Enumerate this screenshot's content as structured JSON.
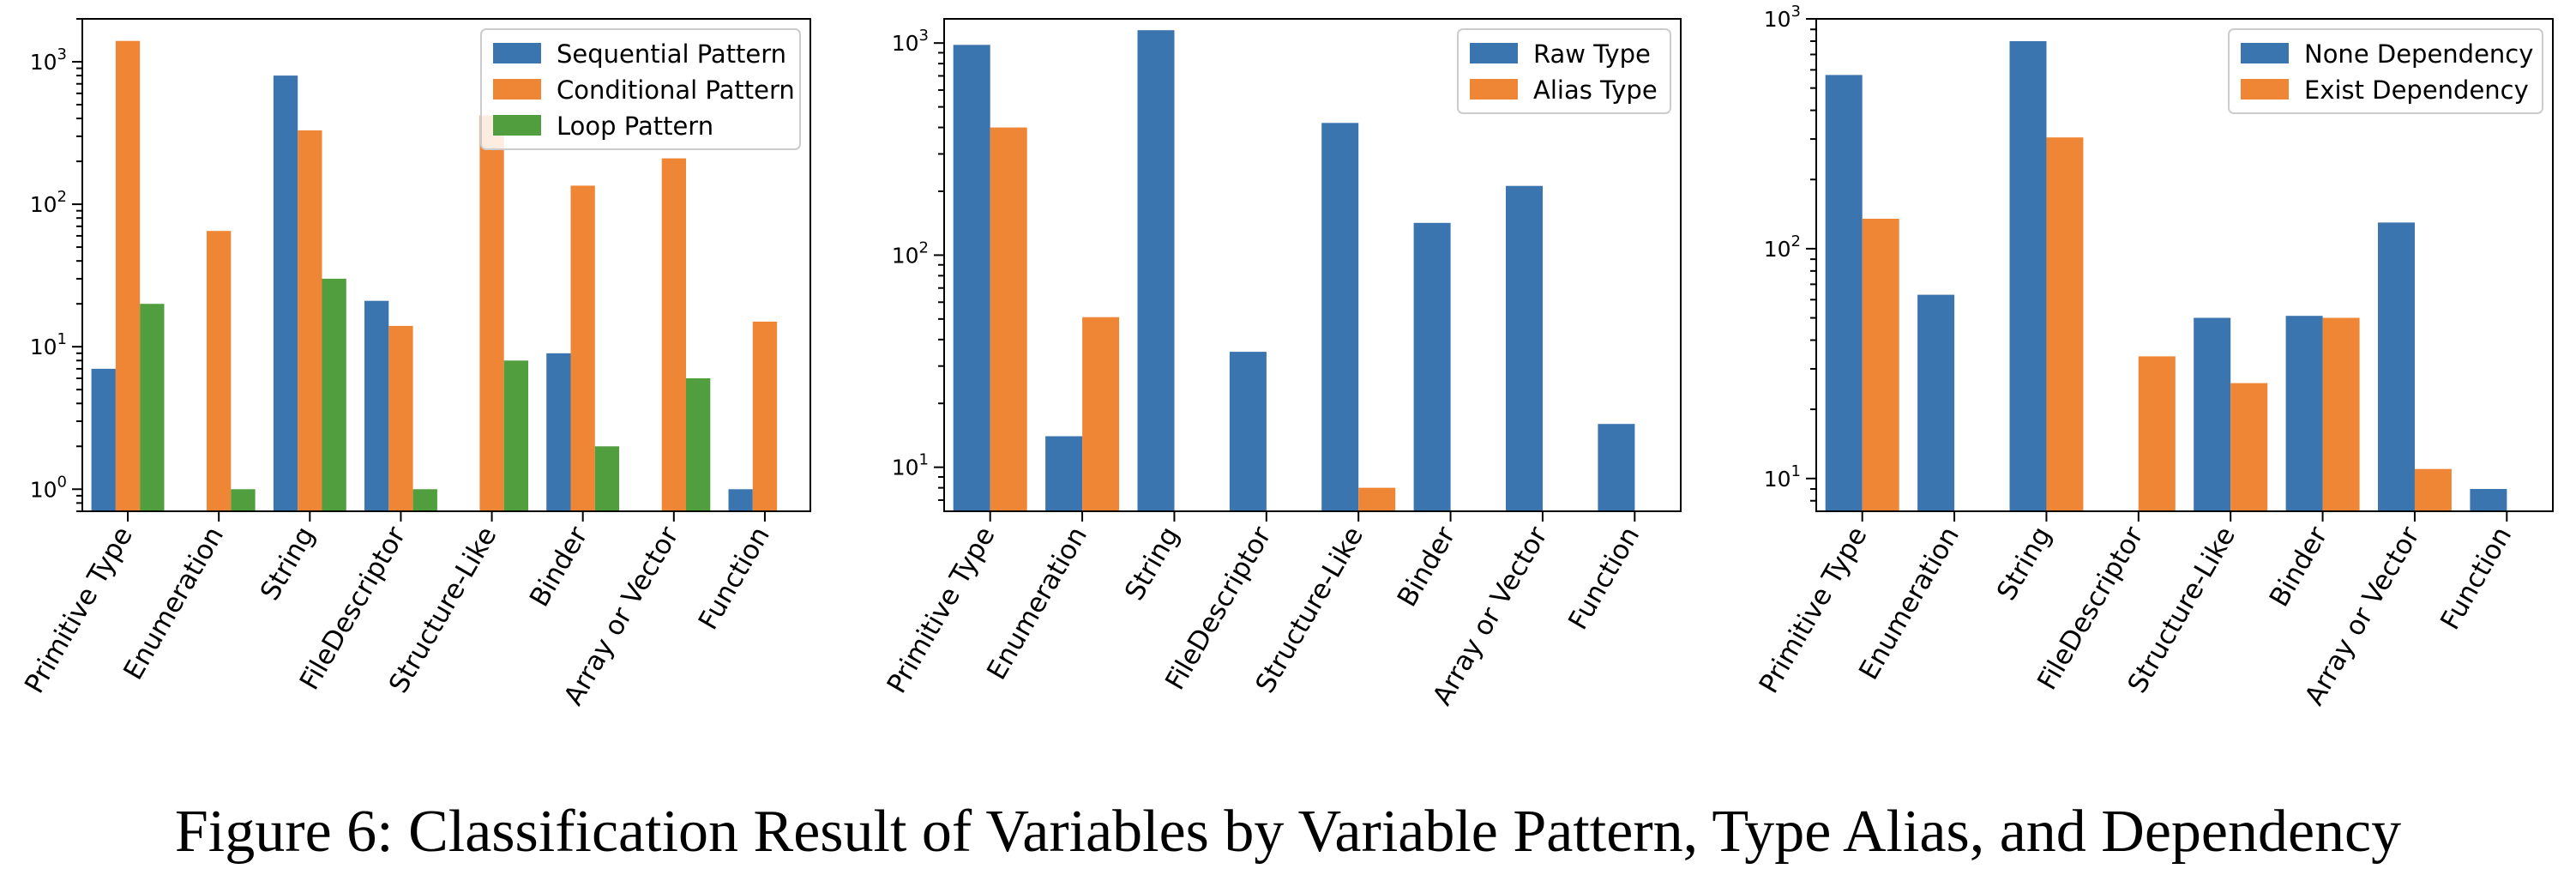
{
  "caption": "Figure 6: Classification Result of Variables by Variable Pattern, Type Alias, and Dependency",
  "colors": {
    "blue": "#3b75af",
    "orange": "#ef8636",
    "green": "#519e3e"
  },
  "chart_data": [
    {
      "type": "bar",
      "yscale": "log",
      "ylim": [
        0.7,
        2000
      ],
      "yticks": [
        {
          "value": 1,
          "base": "10",
          "exp": "0"
        },
        {
          "value": 10,
          "base": "10",
          "exp": "1"
        },
        {
          "value": 100,
          "base": "10",
          "exp": "2"
        },
        {
          "value": 1000,
          "base": "10",
          "exp": "3"
        }
      ],
      "categories": [
        "Primitive Type",
        "Enumeration",
        "String",
        "FileDescriptor",
        "Structure-Like",
        "Binder",
        "Array or Vector",
        "Function"
      ],
      "series": [
        {
          "name": "Sequential Pattern",
          "color": "#3b75af",
          "values": [
            7,
            null,
            800,
            21,
            null,
            9,
            null,
            1
          ]
        },
        {
          "name": "Conditional Pattern",
          "color": "#ef8636",
          "values": [
            1400,
            65,
            330,
            14,
            420,
            135,
            210,
            15
          ]
        },
        {
          "name": "Loop Pattern",
          "color": "#519e3e",
          "values": [
            20,
            1,
            30,
            1,
            8,
            2,
            6,
            null
          ]
        }
      ],
      "legend": "top-right"
    },
    {
      "type": "bar",
      "yscale": "log",
      "ylim": [
        6.2,
        1300
      ],
      "yticks": [
        {
          "value": 10,
          "base": "10",
          "exp": "1"
        },
        {
          "value": 100,
          "base": "10",
          "exp": "2"
        },
        {
          "value": 1000,
          "base": "10",
          "exp": "3"
        }
      ],
      "categories": [
        "Primitive Type",
        "Enumeration",
        "String",
        "FileDescriptor",
        "Structure-Like",
        "Binder",
        "Array or Vector",
        "Function"
      ],
      "series": [
        {
          "name": "Raw Type",
          "color": "#3b75af",
          "values": [
            980,
            14,
            1150,
            35,
            420,
            142,
            212,
            16
          ]
        },
        {
          "name": "Alias Type",
          "color": "#ef8636",
          "values": [
            400,
            51,
            null,
            null,
            8,
            null,
            null,
            null
          ]
        }
      ],
      "legend": "top-right"
    },
    {
      "type": "bar",
      "yscale": "log",
      "ylim": [
        7.2,
        1000
      ],
      "yticks": [
        {
          "value": 10,
          "base": "10",
          "exp": "1"
        },
        {
          "value": 100,
          "base": "10",
          "exp": "2"
        },
        {
          "value": 1000,
          "base": "10",
          "exp": "3"
        }
      ],
      "categories": [
        "Primitive Type",
        "Enumeration",
        "String",
        "FileDescriptor",
        "Structure-Like",
        "Binder",
        "Array or Vector",
        "Function"
      ],
      "series": [
        {
          "name": "None Dependency",
          "color": "#3b75af",
          "values": [
            570,
            63,
            800,
            null,
            50,
            51,
            130,
            9
          ]
        },
        {
          "name": "Exist Dependency",
          "color": "#ef8636",
          "values": [
            135,
            null,
            305,
            34,
            26,
            50,
            11,
            null
          ]
        }
      ],
      "legend": "top-right"
    }
  ]
}
